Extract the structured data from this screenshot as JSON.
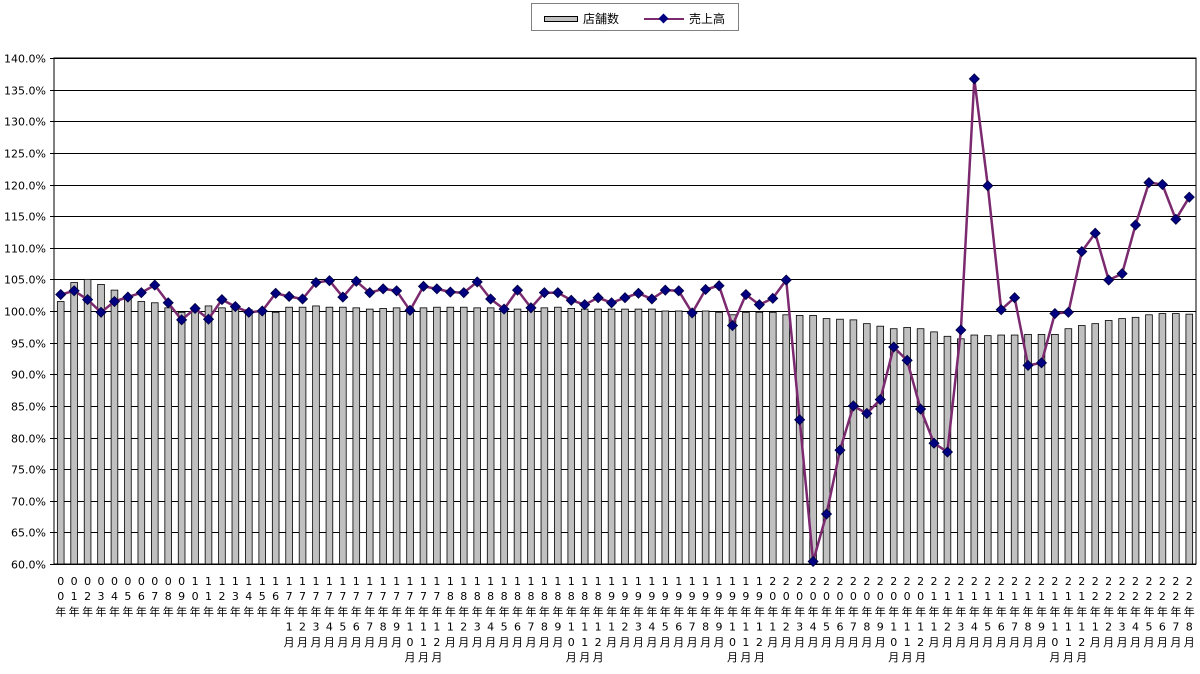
{
  "chart_data": {
    "type": "bar+line",
    "legend": {
      "position": "top-center",
      "bar_label": "店舗数",
      "line_label": "売上高"
    },
    "y_ticks": [
      "140.0%",
      "135.0%",
      "130.0%",
      "125.0%",
      "120.0%",
      "115.0%",
      "110.0%",
      "105.0%",
      "100.0%",
      "95.0%",
      "90.0%",
      "85.0%",
      "80.0%",
      "75.0%",
      "70.0%",
      "65.0%",
      "60.0%"
    ],
    "ylim": [
      60,
      140
    ],
    "grid": true,
    "colors": {
      "bar_fill": "#c0c0c0",
      "line": "#7b2a6f",
      "marker": "#000080",
      "grid": "#000000"
    },
    "categories": [
      "00年",
      "01年",
      "02年",
      "03年",
      "04年",
      "05年",
      "06年",
      "07年",
      "08年",
      "09年",
      "10年",
      "11年",
      "12年",
      "13年",
      "14年",
      "15年",
      "16年",
      "17年1月",
      "17年2月",
      "17年3月",
      "17年4月",
      "17年5月",
      "17年6月",
      "17年7月",
      "17年8月",
      "17年9月",
      "17年10月",
      "17年11月",
      "17年12月",
      "18年1月",
      "18年2月",
      "18年3月",
      "18年4月",
      "18年5月",
      "18年6月",
      "18年7月",
      "18年8月",
      "18年9月",
      "18年10月",
      "18年11月",
      "18年12月",
      "19年1月",
      "19年2月",
      "19年3月",
      "19年4月",
      "19年5月",
      "19年6月",
      "19年7月",
      "19年8月",
      "19年9月",
      "19年10月",
      "19年11月",
      "19年12月",
      "20年1月",
      "20年2月",
      "20年3月",
      "20年4月",
      "20年5月",
      "20年6月",
      "20年7月",
      "20年8月",
      "20年9月",
      "20年10月",
      "20年11月",
      "20年12月",
      "21年1月",
      "21年2月",
      "21年3月",
      "21年4月",
      "21年5月",
      "21年6月",
      "21年7月",
      "21年8月",
      "21年9月",
      "21年10月",
      "21年11月",
      "21年12月",
      "22年1月",
      "22年2月",
      "22年3月",
      "22年4月",
      "22年5月",
      "22年6月",
      "22年7月",
      "22年8月"
    ],
    "x_tick_labels": [
      [
        "0",
        "0",
        "年"
      ],
      [
        "0",
        "1",
        "年"
      ],
      [
        "0",
        "2",
        "年"
      ],
      [
        "0",
        "3",
        "年"
      ],
      [
        "0",
        "4",
        "年"
      ],
      [
        "0",
        "5",
        "年"
      ],
      [
        "0",
        "6",
        "年"
      ],
      [
        "0",
        "7",
        "年"
      ],
      [
        "0",
        "8",
        "年"
      ],
      [
        "0",
        "9",
        "年"
      ],
      [
        "1",
        "0",
        "年"
      ],
      [
        "1",
        "1",
        "年"
      ],
      [
        "1",
        "2",
        "年"
      ],
      [
        "1",
        "3",
        "年"
      ],
      [
        "1",
        "4",
        "年"
      ],
      [
        "1",
        "5",
        "年"
      ],
      [
        "1",
        "6",
        "年"
      ],
      [
        "1",
        "7",
        "年",
        "1",
        "月"
      ],
      [
        "1",
        "7",
        "年",
        "2",
        "月"
      ],
      [
        "1",
        "7",
        "年",
        "3",
        "月"
      ],
      [
        "1",
        "7",
        "年",
        "4",
        "月"
      ],
      [
        "1",
        "7",
        "年",
        "5",
        "月"
      ],
      [
        "1",
        "7",
        "年",
        "6",
        "月"
      ],
      [
        "1",
        "7",
        "年",
        "7",
        "月"
      ],
      [
        "1",
        "7",
        "年",
        "8",
        "月"
      ],
      [
        "1",
        "7",
        "年",
        "9",
        "月"
      ],
      [
        "1",
        "7",
        "年",
        "1",
        "0",
        "月"
      ],
      [
        "1",
        "7",
        "年",
        "1",
        "1",
        "月"
      ],
      [
        "1",
        "7",
        "年",
        "1",
        "2",
        "月"
      ],
      [
        "1",
        "8",
        "年",
        "1",
        "月"
      ],
      [
        "1",
        "8",
        "年",
        "2",
        "月"
      ],
      [
        "1",
        "8",
        "年",
        "3",
        "月"
      ],
      [
        "1",
        "8",
        "年",
        "4",
        "月"
      ],
      [
        "1",
        "8",
        "年",
        "5",
        "月"
      ],
      [
        "1",
        "8",
        "年",
        "6",
        "月"
      ],
      [
        "1",
        "8",
        "年",
        "7",
        "月"
      ],
      [
        "1",
        "8",
        "年",
        "8",
        "月"
      ],
      [
        "1",
        "8",
        "年",
        "9",
        "月"
      ],
      [
        "1",
        "8",
        "年",
        "1",
        "0",
        "月"
      ],
      [
        "1",
        "8",
        "年",
        "1",
        "1",
        "月"
      ],
      [
        "1",
        "8",
        "年",
        "1",
        "2",
        "月"
      ],
      [
        "1",
        "9",
        "年",
        "1",
        "月"
      ],
      [
        "1",
        "9",
        "年",
        "2",
        "月"
      ],
      [
        "1",
        "9",
        "年",
        "3",
        "月"
      ],
      [
        "1",
        "9",
        "年",
        "4",
        "月"
      ],
      [
        "1",
        "9",
        "年",
        "5",
        "月"
      ],
      [
        "1",
        "9",
        "年",
        "6",
        "月"
      ],
      [
        "1",
        "9",
        "年",
        "7",
        "月"
      ],
      [
        "1",
        "9",
        "年",
        "8",
        "月"
      ],
      [
        "1",
        "9",
        "年",
        "9",
        "月"
      ],
      [
        "1",
        "9",
        "年",
        "1",
        "0",
        "月"
      ],
      [
        "1",
        "9",
        "年",
        "1",
        "1",
        "月"
      ],
      [
        "1",
        "9",
        "年",
        "1",
        "2",
        "月"
      ],
      [
        "2",
        "0",
        "年",
        "1",
        "月"
      ],
      [
        "2",
        "0",
        "年",
        "2",
        "月"
      ],
      [
        "2",
        "0",
        "年",
        "3",
        "月"
      ],
      [
        "2",
        "0",
        "年",
        "4",
        "月"
      ],
      [
        "2",
        "0",
        "年",
        "5",
        "月"
      ],
      [
        "2",
        "0",
        "年",
        "6",
        "月"
      ],
      [
        "2",
        "0",
        "年",
        "7",
        "月"
      ],
      [
        "2",
        "0",
        "年",
        "8",
        "月"
      ],
      [
        "2",
        "0",
        "年",
        "9",
        "月"
      ],
      [
        "2",
        "0",
        "年",
        "1",
        "0",
        "月"
      ],
      [
        "2",
        "0",
        "年",
        "1",
        "1",
        "月"
      ],
      [
        "2",
        "0",
        "年",
        "1",
        "2",
        "月"
      ],
      [
        "2",
        "1",
        "年",
        "1",
        "月"
      ],
      [
        "2",
        "1",
        "年",
        "2",
        "月"
      ],
      [
        "2",
        "1",
        "年",
        "3",
        "月"
      ],
      [
        "2",
        "1",
        "年",
        "4",
        "月"
      ],
      [
        "2",
        "1",
        "年",
        "5",
        "月"
      ],
      [
        "2",
        "1",
        "年",
        "6",
        "月"
      ],
      [
        "2",
        "1",
        "年",
        "7",
        "月"
      ],
      [
        "2",
        "1",
        "年",
        "8",
        "月"
      ],
      [
        "2",
        "1",
        "年",
        "9",
        "月"
      ],
      [
        "2",
        "1",
        "年",
        "1",
        "0",
        "月"
      ],
      [
        "2",
        "1",
        "年",
        "1",
        "1",
        "月"
      ],
      [
        "2",
        "1",
        "年",
        "1",
        "2",
        "月"
      ],
      [
        "2",
        "2",
        "年",
        "1",
        "月"
      ],
      [
        "2",
        "2",
        "年",
        "2",
        "月"
      ],
      [
        "2",
        "2",
        "年",
        "3",
        "月"
      ],
      [
        "2",
        "2",
        "年",
        "4",
        "月"
      ],
      [
        "2",
        "2",
        "年",
        "5",
        "月"
      ],
      [
        "2",
        "2",
        "年",
        "6",
        "月"
      ],
      [
        "2",
        "2",
        "年",
        "7",
        "月"
      ],
      [
        "2",
        "2",
        "年",
        "8",
        "月"
      ]
    ],
    "series": [
      {
        "name": "店舗数",
        "type": "bar",
        "values": [
          101.5,
          104.5,
          105.0,
          104.2,
          103.3,
          102.3,
          101.5,
          101.3,
          100.5,
          99.8,
          100.2,
          100.8,
          100.5,
          100.8,
          100.2,
          99.7,
          99.8,
          100.6,
          100.6,
          100.8,
          100.6,
          100.6,
          100.5,
          100.3,
          100.4,
          100.5,
          100.5,
          100.5,
          100.6,
          100.6,
          100.6,
          100.5,
          100.5,
          100.3,
          100.3,
          100.5,
          100.5,
          100.6,
          100.4,
          100.3,
          100.3,
          100.3,
          100.3,
          100.3,
          100.3,
          100.0,
          100.0,
          100.0,
          100.0,
          99.8,
          99.4,
          99.8,
          99.8,
          99.8,
          99.4,
          99.3,
          99.3,
          98.8,
          98.7,
          98.6,
          98.0,
          97.6,
          97.2,
          97.4,
          97.2,
          96.7,
          96.0,
          95.6,
          96.2,
          96.1,
          96.2,
          96.2,
          96.3,
          96.3,
          96.3,
          97.2,
          97.7,
          98.0,
          98.5,
          98.8,
          99.0,
          99.4,
          99.6,
          99.6,
          99.5
        ]
      },
      {
        "name": "売上高",
        "type": "line",
        "values": [
          102.6,
          103.2,
          101.8,
          99.8,
          101.5,
          102.2,
          102.9,
          104.1,
          101.3,
          98.6,
          100.4,
          98.7,
          101.8,
          100.7,
          99.8,
          100.0,
          102.8,
          102.3,
          101.9,
          104.5,
          104.8,
          102.2,
          104.7,
          102.9,
          103.5,
          103.2,
          100.1,
          103.9,
          103.5,
          103.0,
          102.9,
          104.6,
          101.9,
          100.3,
          103.3,
          100.5,
          102.9,
          102.9,
          101.7,
          101.0,
          102.1,
          101.3,
          102.1,
          102.8,
          101.9,
          103.3,
          103.2,
          99.7,
          103.4,
          104.0,
          97.7,
          102.6,
          101.0,
          102.0,
          104.9,
          82.8,
          60.4,
          67.9,
          78.0,
          85.0,
          83.8,
          86.0,
          94.3,
          92.2,
          84.5,
          79.1,
          77.7,
          97.0,
          136.7,
          119.8,
          100.2,
          102.1,
          91.4,
          91.8,
          99.6,
          99.8,
          109.4,
          112.3,
          104.9,
          105.9,
          113.6,
          120.3,
          120.0,
          114.5,
          118.0
        ]
      }
    ]
  }
}
